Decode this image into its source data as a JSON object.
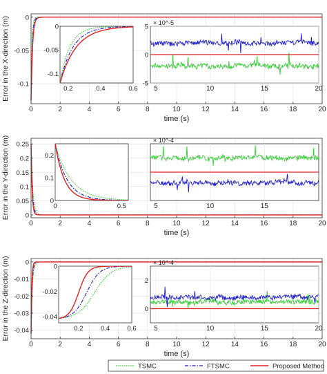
{
  "legend": {
    "placement": "bottom-right",
    "entries": [
      {
        "name": "TSMC",
        "color": "#33cc33",
        "style": "dotted"
      },
      {
        "name": "FTSMC",
        "color": "#1a1acc",
        "style": "dashdot"
      },
      {
        "name": "Proposed Method",
        "color": "#e02020",
        "style": "solid"
      }
    ]
  },
  "chart_data": [
    {
      "type": "line",
      "ylabel": "Error in the X-direction (m)",
      "xlabel": "time (s)",
      "xlim": [
        0,
        20
      ],
      "ylim": [
        -0.13,
        0.005
      ],
      "xticks": [
        0,
        2,
        4,
        6,
        8,
        10,
        12,
        14,
        16,
        18,
        20
      ],
      "yticks": [
        0,
        -0.05,
        -0.1
      ],
      "ytick_labels": [
        "0",
        "-0.05",
        "-0.1"
      ],
      "y0": -0.125,
      "taus": [
        0.06,
        0.08,
        0.1
      ],
      "kind": "decay",
      "grid": true,
      "inset_left": {
        "xlim": [
          0.15,
          0.6
        ],
        "ylim": [
          -0.12,
          0.0
        ],
        "xticks": [
          0.2,
          0.4,
          0.6
        ],
        "xtick_labels": [
          "0.2",
          "0.4",
          "0.6"
        ],
        "yticks": [
          -0.1,
          -0.05,
          0
        ],
        "ytick_labels": [
          "-0.1",
          "-0.05",
          "0"
        ],
        "y0": -0.12,
        "x0": 0.15,
        "taus": [
          0.06,
          0.08,
          0.1
        ],
        "kind": "decay"
      },
      "inset_right": {
        "exponent": "× 10^-5",
        "xlim": [
          4.5,
          20
        ],
        "ylim": [
          -5,
          5
        ],
        "xticks": [
          5,
          10,
          15,
          20
        ],
        "xtick_labels": [
          "5",
          "10",
          "15",
          "20"
        ],
        "yticks": [
          5,
          0,
          -5
        ],
        "ytick_labels": [
          "5",
          "0",
          "-5"
        ],
        "tsmc_level": -2,
        "ftsmc_level": 2
      }
    },
    {
      "type": "line",
      "ylabel": "Error in the Y-direction (m)",
      "xlabel": "time (s)",
      "xlim": [
        0,
        20
      ],
      "ylim": [
        -0.01,
        0.27
      ],
      "xticks": [
        0,
        2,
        4,
        6,
        8,
        10,
        12,
        14,
        16,
        18,
        20
      ],
      "yticks": [
        0,
        0.05,
        0.1,
        0.15,
        0.2,
        0.25
      ],
      "ytick_labels": [
        "0",
        "0.05",
        "0.1",
        "0.15",
        "0.2",
        "0.25"
      ],
      "y0": 0.25,
      "taus": [
        0.12,
        0.09,
        0.07
      ],
      "kind": "decay",
      "grid": true,
      "inset_left": {
        "xlim": [
          0.0,
          0.55
        ],
        "ylim": [
          0.0,
          0.25
        ],
        "xticks": [
          0,
          0.5
        ],
        "xtick_labels": [
          "0",
          "0.5"
        ],
        "yticks": [
          0,
          0.1,
          0.2
        ],
        "ytick_labels": [
          "0",
          "0.1",
          "0.2"
        ],
        "y0": 0.25,
        "x0": 0.0,
        "taus": [
          0.12,
          0.09,
          0.07
        ],
        "kind": "decay"
      },
      "inset_right": {
        "exponent": "× 10^-4",
        "xlim": [
          4.5,
          20
        ],
        "ylim": [
          -4,
          4
        ],
        "xticks": [
          5,
          10,
          15
        ],
        "xtick_labels": [
          "5",
          "10",
          "15"
        ],
        "yticks": [
          2,
          0,
          -2
        ],
        "ytick_labels": [
          "",
          "",
          ""
        ],
        "tsmc_level": 2,
        "ftsmc_level": -1.5
      }
    },
    {
      "type": "line",
      "ylabel": "Error in the Z-direction (m)",
      "xlabel": "time (s)",
      "xlim": [
        0,
        20
      ],
      "ylim": [
        -0.045,
        0.002
      ],
      "xticks": [
        0,
        2,
        4,
        6,
        8,
        10,
        12,
        14,
        16,
        18,
        20
      ],
      "yticks": [
        0,
        -0.01,
        -0.02,
        -0.03,
        -0.04
      ],
      "ytick_labels": [
        "0",
        "-0.01",
        "-0.02",
        "-0.03",
        "-0.04"
      ],
      "y0": -0.042,
      "taus": [
        0.09,
        0.07,
        0.05
      ],
      "kind": "decay",
      "grid": true,
      "inset_left": {
        "xlim": [
          0.05,
          0.6
        ],
        "ylim": [
          -0.045,
          0.0
        ],
        "xticks": [
          0.2,
          0.4,
          0.6
        ],
        "xtick_labels": [
          "0.2",
          "0.4",
          "0.6"
        ],
        "yticks": [
          -0.04,
          -0.02,
          0
        ],
        "ytick_labels": [
          "-0.04",
          "-0.02",
          "0"
        ],
        "y0": -0.042,
        "x0": 0.05,
        "taus": [
          0.09,
          0.07,
          0.05
        ],
        "kind": "sigmoid"
      },
      "inset_right": {
        "exponent": "× 10^-4",
        "xlim": [
          4.5,
          20
        ],
        "ylim": [
          -1,
          3
        ],
        "xticks": [
          5,
          10,
          15,
          20
        ],
        "xtick_labels": [
          "5",
          "10",
          "15",
          "20"
        ],
        "yticks": [
          2,
          0
        ],
        "ytick_labels": [
          "2",
          "0"
        ],
        "tsmc_level": 0.5,
        "ftsmc_level": 0.8
      }
    }
  ]
}
